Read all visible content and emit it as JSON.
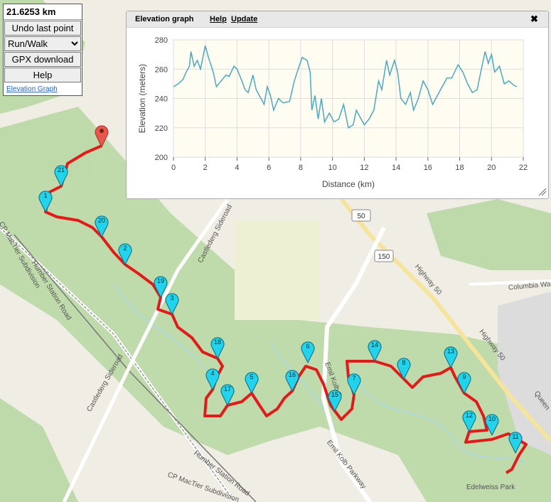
{
  "toolbar": {
    "distance": "21.6253 km",
    "undo": "Undo last point",
    "mode": "Run/Walk",
    "gpx": "GPX download",
    "help": "Help",
    "link": "Elevation Graph"
  },
  "panel": {
    "title": "Elevation graph",
    "help": "Help",
    "update": "Update",
    "close": "✖"
  },
  "chart_data": {
    "type": "line",
    "xlabel": "Distance (km)",
    "ylabel": "Elevation (meters)",
    "color": "#4aa8c0",
    "x": [
      0,
      0.3,
      0.6,
      0.8,
      1.0,
      1.1,
      1.3,
      1.5,
      1.7,
      2.0,
      2.2,
      2.5,
      2.7,
      3.0,
      3.3,
      3.5,
      3.8,
      4.0,
      4.3,
      4.5,
      4.7,
      5.0,
      5.2,
      5.5,
      5.7,
      5.9,
      6.1,
      6.3,
      6.6,
      6.9,
      7.3,
      7.6,
      7.9,
      8.1,
      8.4,
      8.6,
      8.7,
      8.9,
      9.1,
      9.3,
      9.5,
      9.8,
      10.1,
      10.4,
      10.7,
      11.0,
      11.3,
      11.5,
      11.8,
      12.0,
      12.3,
      12.6,
      12.9,
      13.1,
      13.4,
      13.6,
      13.9,
      14.1,
      14.3,
      14.6,
      14.9,
      15.1,
      15.4,
      15.7,
      16.0,
      16.3,
      16.6,
      16.9,
      17.2,
      17.5,
      17.9,
      18.2,
      18.5,
      18.8,
      19.1,
      19.4,
      19.6,
      19.8,
      20.0,
      20.2,
      20.5,
      20.8,
      21.1,
      21.4,
      21.6
    ],
    "values": [
      248,
      250,
      253,
      258,
      262,
      272,
      262,
      266,
      260,
      276,
      268,
      258,
      248,
      252,
      256,
      255,
      262,
      260,
      252,
      246,
      244,
      256,
      246,
      240,
      236,
      248,
      242,
      232,
      240,
      237,
      238,
      252,
      262,
      268,
      266,
      258,
      232,
      242,
      226,
      240,
      224,
      230,
      224,
      226,
      236,
      220,
      222,
      232,
      226,
      222,
      226,
      232,
      252,
      246,
      266,
      256,
      266,
      258,
      240,
      236,
      244,
      232,
      240,
      252,
      246,
      236,
      242,
      248,
      254,
      254,
      263,
      258,
      250,
      244,
      246,
      262,
      272,
      264,
      270,
      258,
      262,
      250,
      252,
      249,
      248
    ],
    "xlim": [
      0,
      22
    ],
    "xticks": [
      0,
      2,
      4,
      6,
      8,
      10,
      12,
      14,
      16,
      18,
      20,
      22
    ],
    "ylim": [
      200,
      280
    ],
    "yticks": [
      200,
      220,
      240,
      260,
      280
    ],
    "grid": true
  },
  "map": {
    "markers": [
      "1",
      "2",
      "3",
      "4",
      "5",
      "6",
      "7",
      "8",
      "9",
      "10",
      "11",
      "12",
      "13",
      "14",
      "15",
      "16",
      "17",
      "18",
      "19",
      "20",
      "21"
    ],
    "labels": [
      "Castlederg Sideroad",
      "Castlederg Sideroad",
      "Humber Station Road",
      "Humber Station Road",
      "CP MacTier Subdivision",
      "CP MacTier Subdivision",
      "Emil Kolb P",
      "Emil Kolb Parkway",
      "Highway 50",
      "Highway 50",
      "Columbia Wa",
      "Queen",
      "Edelweiss Park"
    ],
    "shields": [
      "50",
      "150"
    ]
  }
}
